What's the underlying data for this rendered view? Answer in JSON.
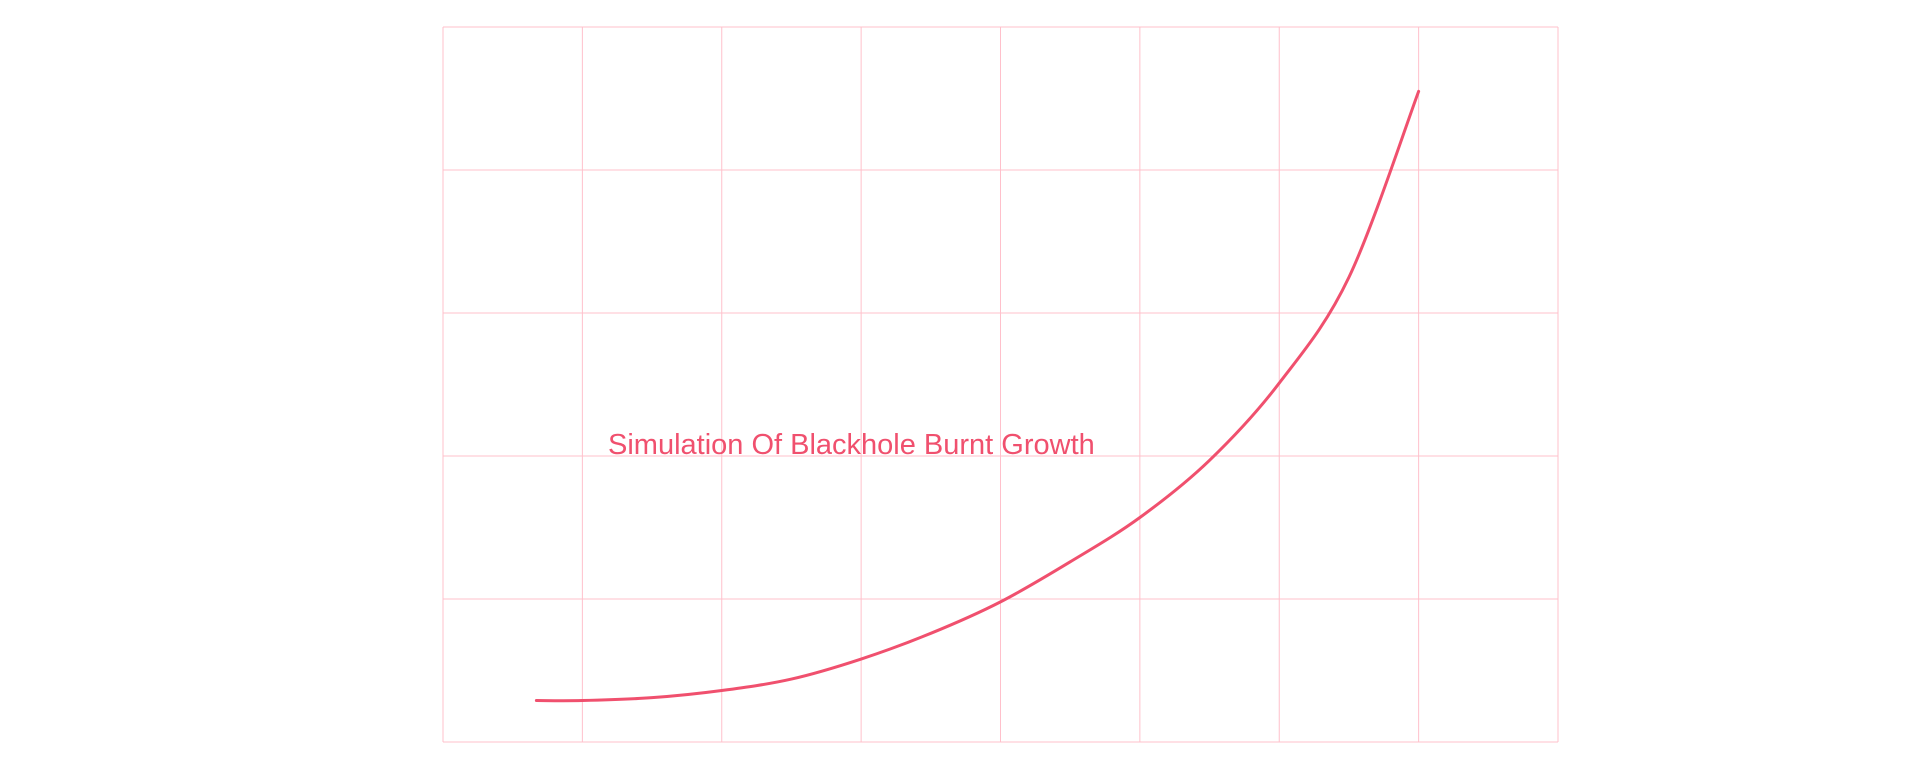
{
  "chart_data": {
    "type": "line",
    "title": "",
    "annotation": "Simulation Of Blackhole Burnt Growth",
    "xlabel": "",
    "ylabel": "",
    "xlim": [
      0,
      8
    ],
    "ylim": [
      0,
      5
    ],
    "grid": true,
    "grid_color": "#ffc0cb",
    "line_color": "#f0506e",
    "text_color": "#f0506e",
    "series": [
      {
        "x": [
          0.67,
          1.0,
          1.5,
          2.0,
          2.5,
          3.0,
          3.5,
          4.0,
          4.5,
          5.0,
          5.5,
          6.0,
          6.5,
          7.0
        ],
        "y": [
          0.29,
          0.29,
          0.31,
          0.36,
          0.44,
          0.58,
          0.76,
          0.98,
          1.26,
          1.57,
          1.97,
          2.51,
          3.25,
          4.55
        ]
      }
    ]
  }
}
